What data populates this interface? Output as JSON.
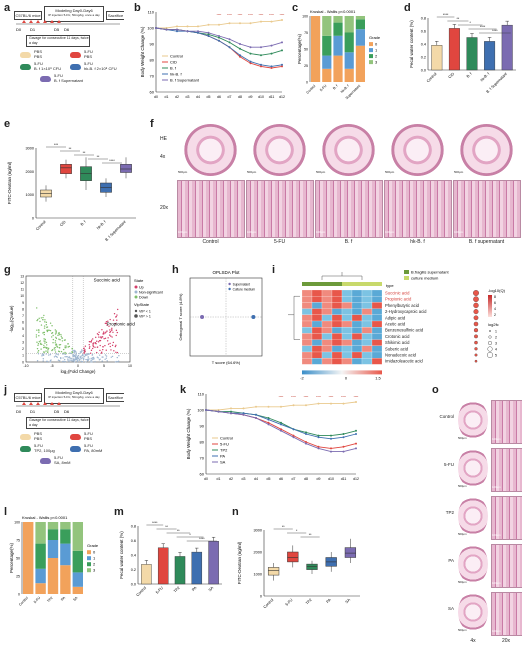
{
  "labels": {
    "a": "a",
    "b": "b",
    "c": "c",
    "d": "d",
    "e": "e",
    "f": "f",
    "g": "g",
    "h": "h",
    "i": "i",
    "j": "j",
    "k": "k",
    "l": "l",
    "m": "m",
    "n": "n",
    "o": "o"
  },
  "panel_a": {
    "mouse": "C57BL/6 mice",
    "model": "Modeling Day0-Day6",
    "model_sub": "IP injection 5-FU, 50mg/kg, once a day",
    "sacrifice": "Sacrifice",
    "days": [
      "D0",
      "D1",
      "D5",
      "D6"
    ],
    "gavage": "Gavage for consecutive 11 days, twice a day",
    "groups": [
      {
        "top": "PBS",
        "bottom": "PBS",
        "color": "#f3d9a8"
      },
      {
        "top": "5-FU",
        "bottom": "PBS",
        "color": "#e0463f"
      },
      {
        "top": "5-FU",
        "bottom": "B. f 1×10⁸ CFU",
        "color": "#2f8a5a"
      },
      {
        "top": "5-FU",
        "bottom": "hk-B. f 2×10⁸ CFU",
        "color": "#3e6fb0"
      },
      {
        "top": "5-FU",
        "bottom": "B. f Supernatant",
        "color": "#7b6bb1"
      }
    ]
  },
  "chart_b": {
    "type": "line",
    "ylabel": "Body Weight Change (%)",
    "x": [
      "d0",
      "d1",
      "d2",
      "d3",
      "d4",
      "d5",
      "d6",
      "d7",
      "d8",
      "d9",
      "d10",
      "d11",
      "d12"
    ],
    "ylim": [
      60,
      110
    ],
    "yticks": [
      "60",
      "70",
      "80",
      "90",
      "100",
      "110"
    ],
    "series": [
      {
        "name": "Control",
        "color": "#e9c98d",
        "values": [
          100,
          100,
          101,
          101,
          101,
          102,
          102,
          103,
          103,
          103,
          104,
          104,
          105
        ]
      },
      {
        "name": "CID",
        "color": "#e0463f",
        "values": [
          100,
          99,
          99,
          98,
          97,
          95,
          92,
          88,
          82,
          78,
          76,
          75,
          76
        ]
      },
      {
        "name": "B. f",
        "color": "#2f8a5a",
        "values": [
          100,
          99,
          99,
          98,
          97,
          96,
          94,
          91,
          87,
          84,
          83,
          84,
          86
        ]
      },
      {
        "name": "hk-B. f",
        "color": "#3e6fb0",
        "values": [
          100,
          99,
          98,
          98,
          97,
          95,
          92,
          88,
          83,
          79,
          77,
          76,
          77
        ]
      },
      {
        "name": "B. f Supernatant",
        "color": "#7b6bb1",
        "values": [
          100,
          99,
          99,
          98,
          98,
          97,
          95,
          93,
          90,
          88,
          88,
          89,
          91
        ]
      }
    ],
    "sig": "****"
  },
  "chart_c": {
    "type": "bar",
    "title": "Kruskal - Wallis p<0.0001",
    "ylabel": "Percentage(%)",
    "categories": [
      "Control",
      "5-FU",
      "B. f",
      "hk-B. f",
      "Supernatant"
    ],
    "legend_title": "Grade",
    "grades": [
      "0",
      "1",
      "2",
      "3"
    ],
    "colors": [
      "#f2a25b",
      "#5a9bd4",
      "#3a9e5b",
      "#93c47d"
    ],
    "values": [
      [
        100,
        0,
        0,
        0
      ],
      [
        20,
        20,
        30,
        30
      ],
      [
        40,
        30,
        20,
        10
      ],
      [
        20,
        25,
        30,
        25
      ],
      [
        55,
        25,
        15,
        5
      ]
    ]
  },
  "chart_d": {
    "type": "bar",
    "ylabel": "Fecal water content (%)",
    "categories": [
      "Control",
      "CID",
      "B. f",
      "hk-B. f",
      "B. f Supernatant"
    ],
    "values": [
      0.38,
      0.64,
      0.5,
      0.44,
      0.69
    ],
    "ylim": [
      0,
      0.8
    ],
    "yticks": [
      "0.0",
      "0.2",
      "0.4",
      "0.6",
      "0.8"
    ],
    "colors": [
      "#f3d9a8",
      "#e0463f",
      "#2f8a5a",
      "#3e6fb0",
      "#7b6bb1"
    ],
    "sig": [
      "****",
      "**",
      "*",
      "****",
      "****"
    ]
  },
  "chart_e": {
    "type": "box",
    "ylabel": "FITC-Dextran (ng/ml)",
    "categories": [
      "Control",
      "CID",
      "B. f",
      "hk-B. f",
      "B. f Supernatant"
    ],
    "ylim": [
      0,
      3000
    ],
    "yticks": [
      "0",
      "1000",
      "2000",
      "3000"
    ],
    "colors": [
      "#f3d9a8",
      "#e0463f",
      "#2f8a5a",
      "#3e6fb0",
      "#7b6bb1"
    ],
    "boxes": [
      [
        700,
        900,
        1050,
        1200,
        1400
      ],
      [
        1700,
        1900,
        2150,
        2300,
        2500
      ],
      [
        1200,
        1600,
        1900,
        2200,
        2600
      ],
      [
        900,
        1100,
        1300,
        1500,
        1700
      ],
      [
        1700,
        1950,
        2100,
        2300,
        2600
      ]
    ],
    "sig": [
      "***",
      "**",
      "**",
      "**",
      "****"
    ]
  },
  "panel_f": {
    "row1": "HE",
    "row1b": "4x",
    "row2": "20x",
    "cols": [
      "Control",
      "5-FU",
      "B. f",
      "hk-B. f",
      "B. f supernatant"
    ],
    "scale1": "500μm",
    "scale2": "100μm"
  },
  "chart_g": {
    "type": "scatter",
    "xlabel": "log₂(Fold Change)",
    "ylabel": "-log₁₀(Qvalue)",
    "xlim": [
      -10,
      10
    ],
    "ylim": [
      0,
      13
    ],
    "xticks": [
      "-10",
      "-5",
      "0",
      "5",
      "10"
    ],
    "yticks": [
      "0",
      "1",
      "2",
      "3",
      "4",
      "5",
      "6",
      "7",
      "8",
      "9",
      "10",
      "11",
      "12",
      "13"
    ],
    "legend_title": "State",
    "states": [
      {
        "name": "Up",
        "color": "#d43f6a"
      },
      {
        "name": "Non-significant",
        "color": "#9fb6d0"
      },
      {
        "name": "Down",
        "color": "#7fbf6b"
      }
    ],
    "vip_title": "VipState",
    "vip": [
      "VIP < 1",
      "VIP > 1"
    ],
    "annotations": [
      "Succinic acid",
      "Propionic acid"
    ]
  },
  "chart_h": {
    "type": "scatter",
    "title": "OPLSDA Plot",
    "xlabel": "T score (64.6%)",
    "ylabel": "Orthogonal T score (4.8%)",
    "legend": [
      {
        "name": "Supernatant",
        "color": "#7b6bb1"
      },
      {
        "name": "Culture medium",
        "color": "#3e6fb0"
      }
    ],
    "points": [
      {
        "x": -0.7,
        "y": 0
      },
      {
        "x": 0.8,
        "y": 0
      }
    ]
  },
  "chart_i": {
    "type": "heatmap",
    "legend_type": "type",
    "legend_items": [
      {
        "name": "B.fragilis supernatant",
        "color": "#6c9a3a"
      },
      {
        "name": "culture medium",
        "color": "#c8d96b"
      }
    ],
    "rows": [
      "Succinic acid",
      "Propionic acid",
      "Phenylbutyric acid",
      "2-Hydroxycaproic acid",
      "Adipic acid",
      "Acetic acid",
      "Benzenesulfinic acid",
      "Crotonic acid",
      "Shikimic acid",
      "Suberic acid",
      "Nonadecoic acid",
      "Imidazoleacetic acid"
    ],
    "highlight_rows": [
      0,
      1
    ],
    "highlight_color": "#d43f3a",
    "scale_ticks": [
      "-2",
      "0",
      "1.5"
    ],
    "q_title": "-log10(Q)",
    "q_ticks": [
      "8",
      "6",
      "4",
      "2"
    ],
    "fc_title": "log2fc",
    "fc_ticks": [
      "1",
      "2",
      "3",
      "4",
      "5"
    ]
  },
  "panel_j": {
    "mouse": "C57BL/6 mice",
    "model": "Modeling Day0-Day6",
    "model_sub": "IP injection 5-FU, 50mg/kg, once a day",
    "sacrifice": "Sacrifice",
    "days": [
      "D0",
      "D1",
      "D5",
      "D6"
    ],
    "gavage": "Gavage for consecutive 11 days, twice a day",
    "groups": [
      {
        "top": "PBS",
        "bottom": "PBS",
        "color": "#f3d9a8"
      },
      {
        "top": "5-FU",
        "bottom": "PBS",
        "color": "#e0463f"
      },
      {
        "top": "5-FU",
        "bottom": "TP2, 100μg",
        "color": "#2f8a5a"
      },
      {
        "top": "5-FU",
        "bottom": "PA, 80mM",
        "color": "#3e6fb0"
      },
      {
        "top": "5-FU",
        "bottom": "SA, 8mM",
        "color": "#7b6bb1"
      }
    ]
  },
  "chart_k": {
    "type": "line",
    "ylabel": "Body Weight Change (%)",
    "x": [
      "d0",
      "d1",
      "d2",
      "d3",
      "d4",
      "d5",
      "d6",
      "d7",
      "d8",
      "d9",
      "d10",
      "d11",
      "d12"
    ],
    "ylim": [
      60,
      110
    ],
    "yticks": [
      "60",
      "70",
      "80",
      "90",
      "100",
      "110"
    ],
    "series": [
      {
        "name": "Control",
        "color": "#e9c98d",
        "values": [
          100,
          100,
          101,
          101,
          102,
          102,
          102,
          103,
          103,
          104,
          104,
          104,
          105
        ]
      },
      {
        "name": "5-FU",
        "color": "#e0463f",
        "values": [
          100,
          99,
          98,
          97,
          95,
          92,
          88,
          84,
          80,
          77,
          76,
          77,
          79
        ]
      },
      {
        "name": "TP2",
        "color": "#2f8a5a",
        "values": [
          100,
          99,
          99,
          98,
          97,
          95,
          92,
          88,
          86,
          84,
          84,
          85,
          87
        ]
      },
      {
        "name": "PA",
        "color": "#3e6fb0",
        "values": [
          100,
          99,
          98,
          98,
          97,
          94,
          91,
          88,
          85,
          83,
          82,
          83,
          85
        ]
      },
      {
        "name": "SA",
        "color": "#7b6bb1",
        "values": [
          100,
          99,
          98,
          97,
          95,
          91,
          87,
          83,
          79,
          76,
          74,
          74,
          76
        ]
      }
    ],
    "sig": "****"
  },
  "chart_l": {
    "type": "bar",
    "title": "Kruskal - Wallis p<0.0001",
    "ylabel": "Percentage(%)",
    "categories": [
      "Control",
      "5-FU",
      "TP2",
      "PA",
      "SA"
    ],
    "legend_title": "Grade",
    "grades": [
      "0",
      "1",
      "2",
      "3"
    ],
    "colors": [
      "#f2a25b",
      "#5a9bd4",
      "#3a9e5b",
      "#93c47d"
    ],
    "values": [
      [
        100,
        0,
        0,
        0
      ],
      [
        15,
        20,
        35,
        30
      ],
      [
        50,
        25,
        15,
        10
      ],
      [
        40,
        30,
        20,
        10
      ],
      [
        10,
        20,
        30,
        40
      ]
    ]
  },
  "chart_m": {
    "type": "bar",
    "ylabel": "Fecal water content (%)",
    "categories": [
      "Control",
      "5-FU",
      "TP2",
      "PA",
      "SA"
    ],
    "values": [
      0.27,
      0.5,
      0.38,
      0.44,
      0.59
    ],
    "ylim": [
      0,
      0.8
    ],
    "yticks": [
      "0.0",
      "0.2",
      "0.4",
      "0.6",
      "0.8"
    ],
    "colors": [
      "#f3d9a8",
      "#e0463f",
      "#2f8a5a",
      "#3e6fb0",
      "#7b6bb1"
    ],
    "sig": [
      "****",
      "**",
      "**",
      "*",
      "****"
    ]
  },
  "chart_n": {
    "type": "box",
    "ylabel": "FITC-Dextran (ng/ml)",
    "categories": [
      "Control",
      "5-FU",
      "TP2",
      "PA",
      "SA"
    ],
    "ylim": [
      0,
      3000
    ],
    "yticks": [
      "0",
      "1000",
      "2000",
      "3000"
    ],
    "colors": [
      "#f3d9a8",
      "#e0463f",
      "#2f8a5a",
      "#3e6fb0",
      "#7b6bb1"
    ],
    "boxes": [
      [
        700,
        950,
        1150,
        1300,
        1500
      ],
      [
        1300,
        1550,
        1750,
        2000,
        2300
      ],
      [
        1000,
        1200,
        1350,
        1450,
        1600
      ],
      [
        1100,
        1350,
        1550,
        1750,
        2000
      ],
      [
        1500,
        1750,
        1950,
        2200,
        2600
      ]
    ],
    "sig": [
      "**",
      "*",
      "**"
    ]
  },
  "panel_o": {
    "rows": [
      "Control",
      "5-FU",
      "TP2",
      "PA",
      "SA"
    ],
    "cols": [
      "4x",
      "20x"
    ],
    "scale1": "500μm",
    "scale2": "100μm"
  }
}
